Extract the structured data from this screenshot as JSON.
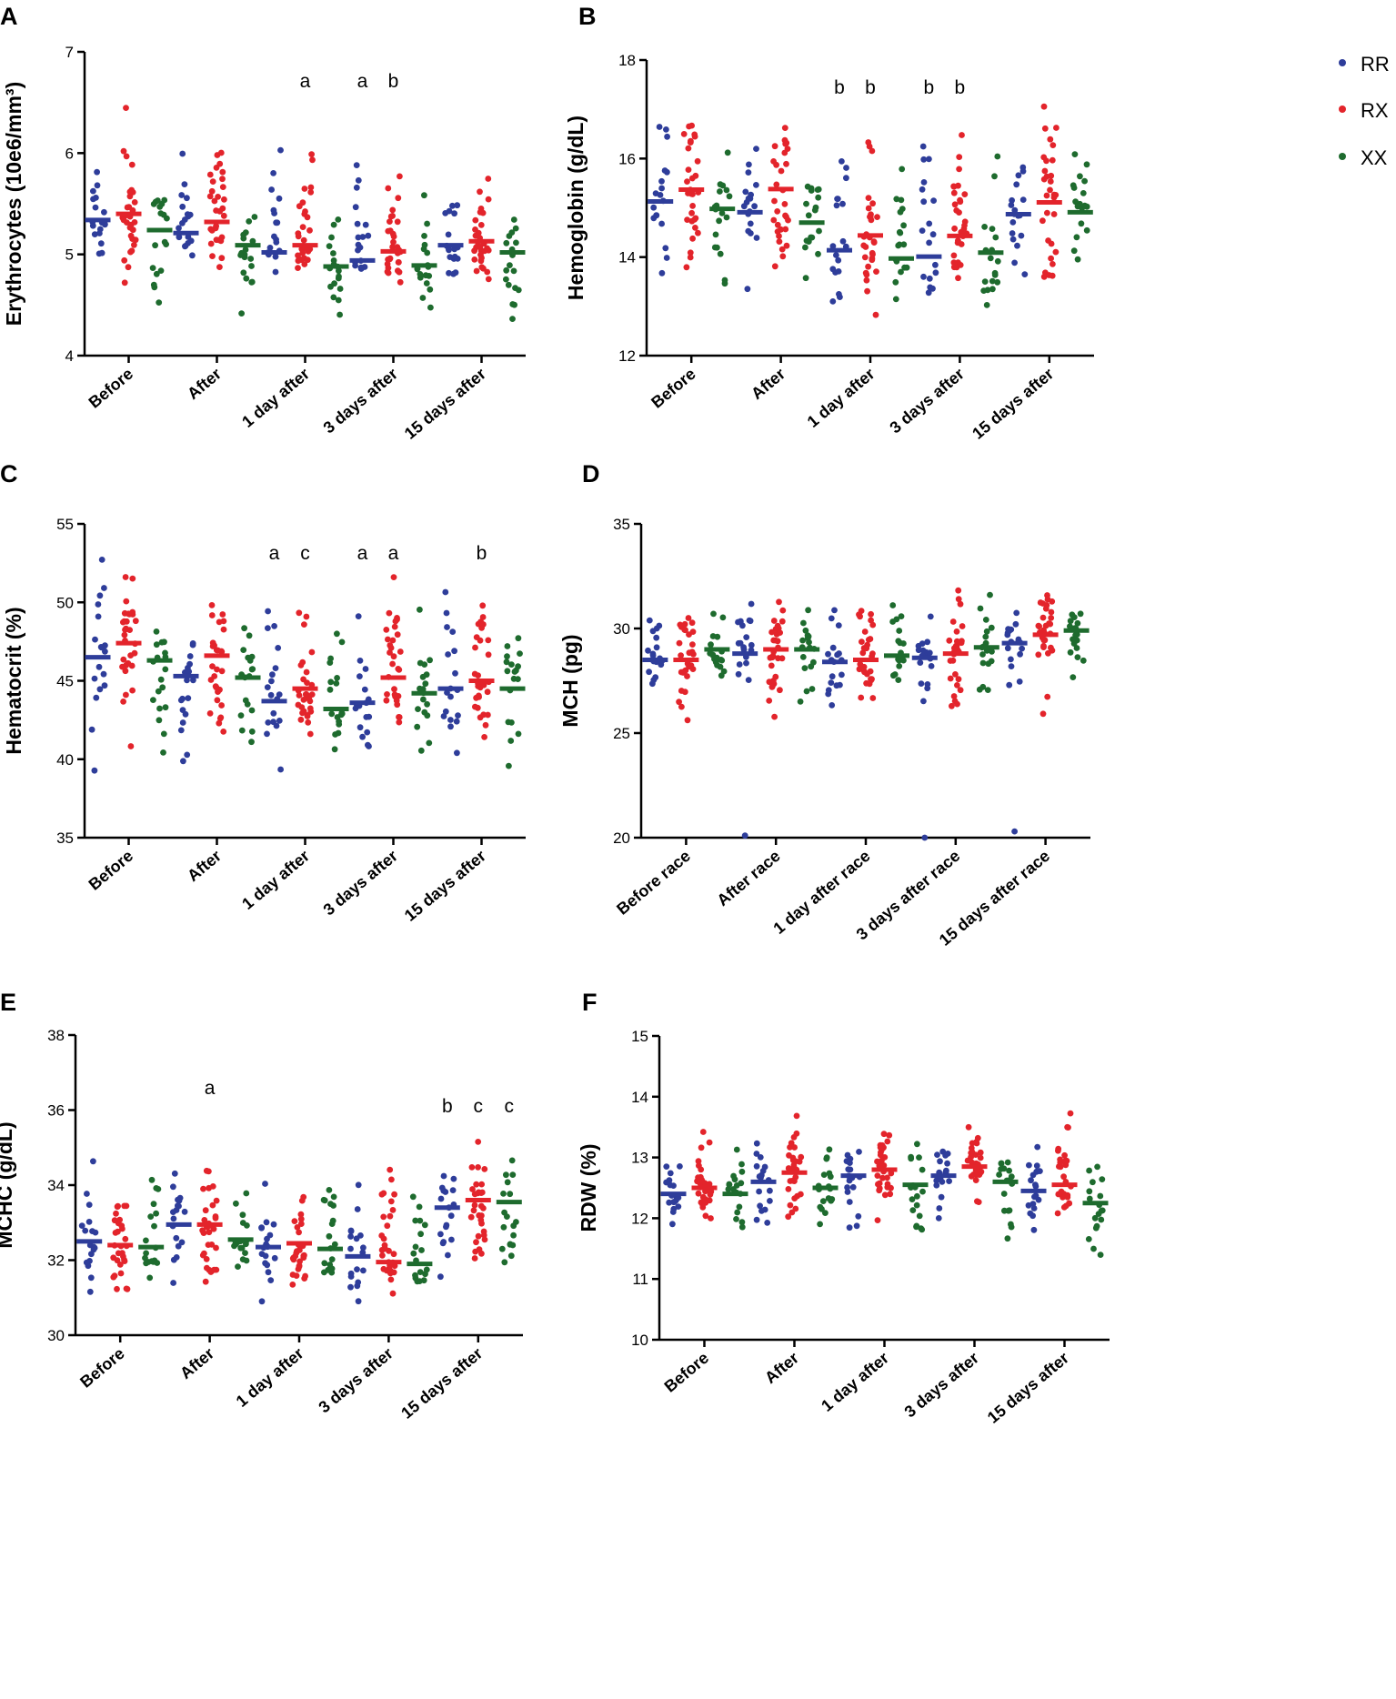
{
  "legend": [
    {
      "name": "RR",
      "color": "#2e3d9a"
    },
    {
      "name": "RX",
      "color": "#e3242b"
    },
    {
      "name": "XX",
      "color": "#1e6b2e"
    }
  ],
  "chart_data": [
    {
      "id": "A",
      "letter": "A",
      "type": "scatter",
      "ylabel": "Erythrocytes (10e6/mm³)",
      "ylim": [
        4,
        7
      ],
      "yticks": [
        "4",
        "5",
        "6",
        "7"
      ],
      "categories": [
        "Before",
        "After",
        "1 day after",
        "3 days after",
        "15 days after"
      ],
      "means": {
        "RR": [
          5.34,
          5.21,
          5.02,
          4.94,
          5.09
        ],
        "RX": [
          5.4,
          5.32,
          5.09,
          5.03,
          5.13
        ],
        "XX": [
          5.24,
          5.09,
          4.88,
          4.89,
          5.02
        ]
      },
      "spread": {
        "RR": [
          4.78,
          6.44
        ],
        "RX": [
          4.55,
          6.57
        ],
        "XX": [
          4.23,
          5.85
        ]
      },
      "annotations": [
        {
          "cat": 2,
          "group": "RX",
          "text": "a"
        },
        {
          "cat": 3,
          "group": "RR",
          "text": "a"
        },
        {
          "cat": 3,
          "group": "RX",
          "text": "b"
        }
      ]
    },
    {
      "id": "B",
      "letter": "B",
      "type": "scatter",
      "ylabel": "Hemoglobin (g/dL)",
      "ylim": [
        12,
        18
      ],
      "yticks": [
        "12",
        "14",
        "16",
        "18"
      ],
      "categories": [
        "Before",
        "After",
        "1 day after",
        "3 days after",
        "15 days after"
      ],
      "means": {
        "RR": [
          15.13,
          14.91,
          14.14,
          14.01,
          14.87
        ],
        "RX": [
          15.37,
          15.38,
          14.44,
          14.43,
          15.11
        ],
        "XX": [
          14.98,
          14.7,
          13.97,
          14.09,
          14.91
        ]
      },
      "spread": {
        "RR": [
          12.1,
          17.4
        ],
        "RX": [
          12.7,
          17.4
        ],
        "XX": [
          12.3,
          16.5
        ]
      },
      "annotations": [
        {
          "cat": 2,
          "group": "RR",
          "text": "b"
        },
        {
          "cat": 2,
          "group": "RX",
          "text": "b"
        },
        {
          "cat": 3,
          "group": "RR",
          "text": "b"
        },
        {
          "cat": 3,
          "group": "RX",
          "text": "b"
        }
      ]
    },
    {
      "id": "C",
      "letter": "C",
      "type": "scatter",
      "ylabel": "Hematocrit (%)",
      "ylim": [
        35,
        55
      ],
      "yticks": [
        "35",
        "40",
        "45",
        "50",
        "55"
      ],
      "categories": [
        "Before",
        "After",
        "1 day after",
        "3 days after",
        "15 days after"
      ],
      "means": {
        "RR": [
          46.5,
          45.3,
          43.7,
          43.6,
          44.5
        ],
        "RX": [
          47.4,
          46.6,
          44.5,
          45.2,
          45.0
        ],
        "XX": [
          46.3,
          45.2,
          43.2,
          44.2,
          44.5
        ]
      },
      "spread": {
        "RR": [
          37.6,
          54.1
        ],
        "RX": [
          39.2,
          53.0
        ],
        "XX": [
          37.7,
          50.5
        ]
      },
      "annotations": [
        {
          "cat": 2,
          "group": "RR",
          "text": "a"
        },
        {
          "cat": 2,
          "group": "RX",
          "text": "c"
        },
        {
          "cat": 3,
          "group": "RR",
          "text": "a"
        },
        {
          "cat": 3,
          "group": "RX",
          "text": "a"
        },
        {
          "cat": 4,
          "group": "RX",
          "text": "b"
        }
      ]
    },
    {
      "id": "D",
      "letter": "D",
      "type": "scatter",
      "ylabel": "MCH (pg)",
      "ylim": [
        20,
        35
      ],
      "yticks": [
        "20",
        "25",
        "30",
        "35"
      ],
      "categories": [
        "Before race",
        "After race",
        "1 day after race",
        "3 days after race",
        "15 days after race"
      ],
      "means": {
        "RR": [
          28.5,
          28.8,
          28.4,
          28.6,
          29.3
        ],
        "RX": [
          28.5,
          29.0,
          28.5,
          28.8,
          29.7
        ],
        "XX": [
          29.0,
          29.0,
          28.7,
          29.1,
          29.9
        ]
      },
      "spread": {
        "RR": [
          25.4,
          31.6
        ],
        "RX": [
          24.7,
          32.7
        ],
        "XX": [
          25.9,
          32.1
        ]
      },
      "outliers": [
        {
          "cat": 1,
          "group": "RR",
          "value": 20.1
        },
        {
          "cat": 3,
          "group": "RR",
          "value": 20.0
        },
        {
          "cat": 4,
          "group": "RR",
          "value": 20.3
        }
      ],
      "annotations": []
    },
    {
      "id": "E",
      "letter": "E",
      "type": "scatter",
      "ylabel": "MCHC (g/dL)",
      "ylim": [
        30,
        38
      ],
      "yticks": [
        "30",
        "32",
        "34",
        "36",
        "38"
      ],
      "categories": [
        "Before",
        "After",
        "1 day after",
        "3 days after",
        "15 days after"
      ],
      "means": {
        "RR": [
          32.5,
          32.95,
          32.35,
          32.1,
          33.4
        ],
        "RX": [
          32.4,
          32.95,
          32.45,
          31.95,
          33.6
        ],
        "XX": [
          32.35,
          32.55,
          32.3,
          31.9,
          33.55
        ]
      },
      "spread": {
        "RR": [
          30.1,
          34.8
        ],
        "RX": [
          30.6,
          35.8
        ],
        "XX": [
          31.0,
          35.2
        ]
      },
      "annotations": [
        {
          "cat": 1,
          "group": "RX",
          "text": "a"
        },
        {
          "cat": 4,
          "group": "RR",
          "text": "b"
        },
        {
          "cat": 4,
          "group": "RX",
          "text": "c"
        },
        {
          "cat": 4,
          "group": "XX",
          "text": "c"
        }
      ]
    },
    {
      "id": "F",
      "letter": "F",
      "type": "scatter",
      "ylabel": "RDW (%)",
      "ylim": [
        10,
        15
      ],
      "yticks": [
        "10",
        "11",
        "12",
        "13",
        "14",
        "15"
      ],
      "categories": [
        "Before",
        "After",
        "1 day after",
        "3 days after",
        "15 days after"
      ],
      "means": {
        "RR": [
          12.4,
          12.6,
          12.7,
          12.7,
          12.45
        ],
        "RX": [
          12.5,
          12.75,
          12.8,
          12.85,
          12.55
        ],
        "XX": [
          12.4,
          12.5,
          12.55,
          12.6,
          12.25
        ]
      },
      "spread": {
        "RR": [
          11.5,
          13.6
        ],
        "RX": [
          11.7,
          13.9
        ],
        "XX": [
          11.2,
          13.4
        ]
      },
      "annotations": []
    }
  ]
}
